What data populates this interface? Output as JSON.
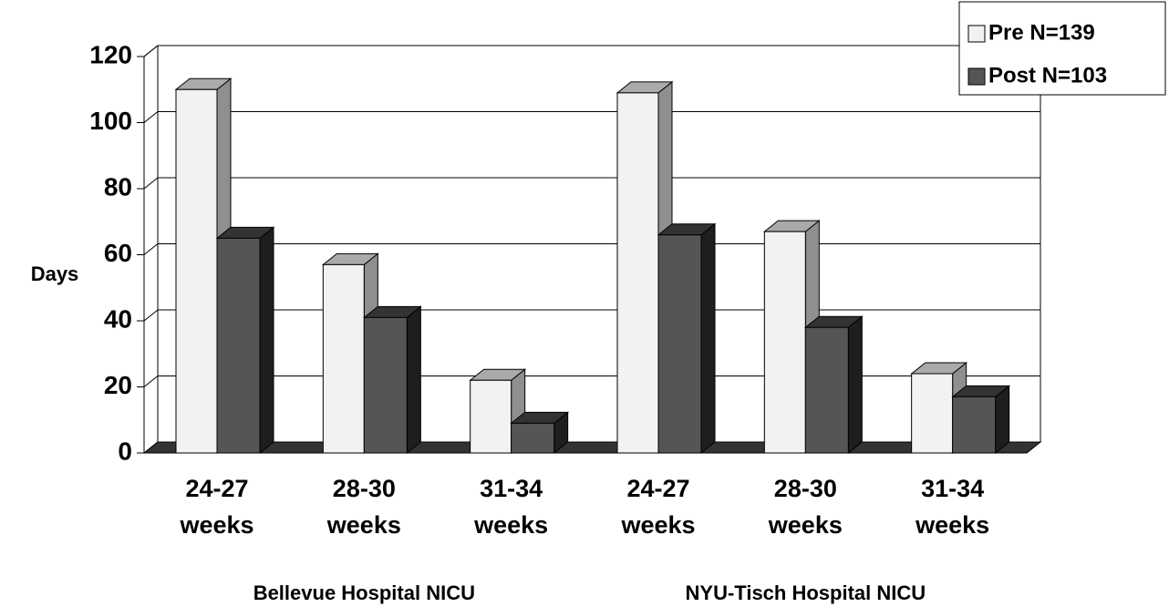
{
  "chart_data": {
    "type": "bar3d",
    "ylabel": "Days",
    "categories": [
      "24-27 weeks",
      "28-30 weeks",
      "31-34 weeks",
      "24-27 weeks",
      "28-30 weeks",
      "31-34 weeks"
    ],
    "groups": [
      "Bellevue Hospital NICU",
      "NYU-Tisch  Hospital NICU"
    ],
    "series": [
      {
        "name": "Pre N=139",
        "color": "#f2f2f2",
        "values": [
          110,
          57,
          22,
          109,
          67,
          24
        ]
      },
      {
        "name": "Post N=103",
        "color": "#555555",
        "values": [
          65,
          41,
          9,
          66,
          38,
          17
        ]
      }
    ],
    "ylim": [
      0,
      120
    ],
    "yticks": [
      0,
      20,
      40,
      60,
      80,
      100,
      120
    ],
    "grid": true,
    "legend": "upper right"
  }
}
